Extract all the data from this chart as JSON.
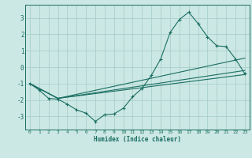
{
  "title": "",
  "xlabel": "Humidex (Indice chaleur)",
  "ylabel": "",
  "bg_color": "#cce8e4",
  "grid_color": "#aacfcb",
  "line_color": "#1a6e62",
  "xlim": [
    -0.5,
    23.5
  ],
  "ylim": [
    -3.8,
    3.8
  ],
  "yticks": [
    -3,
    -2,
    -1,
    0,
    1,
    2,
    3
  ],
  "xticks": [
    0,
    1,
    2,
    3,
    4,
    5,
    6,
    7,
    8,
    9,
    10,
    11,
    12,
    13,
    14,
    15,
    16,
    17,
    18,
    19,
    20,
    21,
    22,
    23
  ],
  "series": [
    {
      "x": [
        0,
        1,
        2,
        3,
        4,
        5,
        6,
        7,
        8,
        9,
        10,
        11,
        12,
        13,
        14,
        15,
        16,
        17,
        18,
        19,
        20,
        21,
        22,
        23
      ],
      "y": [
        -1.0,
        -1.4,
        -1.9,
        -1.95,
        -2.25,
        -2.6,
        -2.8,
        -3.3,
        -2.9,
        -2.85,
        -2.5,
        -1.8,
        -1.3,
        -0.5,
        0.5,
        2.1,
        2.9,
        3.35,
        2.65,
        1.85,
        1.3,
        1.25,
        0.5,
        -0.4
      ],
      "marker": "+"
    },
    {
      "x": [
        0,
        3,
        23
      ],
      "y": [
        -1.0,
        -1.9,
        -0.45
      ]
    },
    {
      "x": [
        0,
        3,
        23
      ],
      "y": [
        -1.0,
        -1.9,
        0.55
      ]
    },
    {
      "x": [
        0,
        3,
        23
      ],
      "y": [
        -1.0,
        -1.9,
        -0.2
      ]
    }
  ]
}
